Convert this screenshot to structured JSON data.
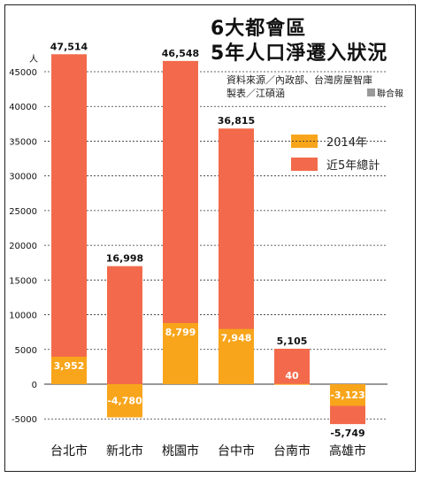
{
  "title": {
    "line1": "6大都會區",
    "line2": "5年人口淨遷入狀況"
  },
  "source": {
    "line1": "資料來源／內政部、台灣房屋智庫",
    "line2": "製表／江碩涵",
    "press": "聯合報"
  },
  "colors": {
    "total": "#F26A4B",
    "year2014": "#F8A51B",
    "gridline": "#333333",
    "text": "#111111"
  },
  "chart_data": {
    "type": "bar",
    "ylabel": "人",
    "ylim": [
      -6000,
      48000
    ],
    "yticks": [
      -5000,
      0,
      5000,
      10000,
      15000,
      20000,
      25000,
      30000,
      35000,
      40000,
      45000
    ],
    "ytick_labels": [
      "-5000",
      "0",
      "5000",
      "10000",
      "15000",
      "20000",
      "25000",
      "30000",
      "35000",
      "40000",
      "45000"
    ],
    "grid": true,
    "legend": "right",
    "categories": [
      "台北市",
      "新北市",
      "桃園市",
      "台中市",
      "台南市",
      "高雄市"
    ],
    "series": [
      {
        "name": "近5年總計",
        "values": [
          47514,
          16998,
          46548,
          36815,
          5105,
          -5749
        ],
        "labels": [
          "47,514",
          "16,998",
          "46,548",
          "36,815",
          "5,105",
          "-5,749"
        ]
      },
      {
        "name": "2014年",
        "values": [
          3952,
          -4780,
          8799,
          7948,
          40,
          -3123
        ],
        "labels": [
          "3,952",
          "-4,780",
          "8,799",
          "7,948",
          "40",
          "-3,123"
        ]
      }
    ]
  }
}
